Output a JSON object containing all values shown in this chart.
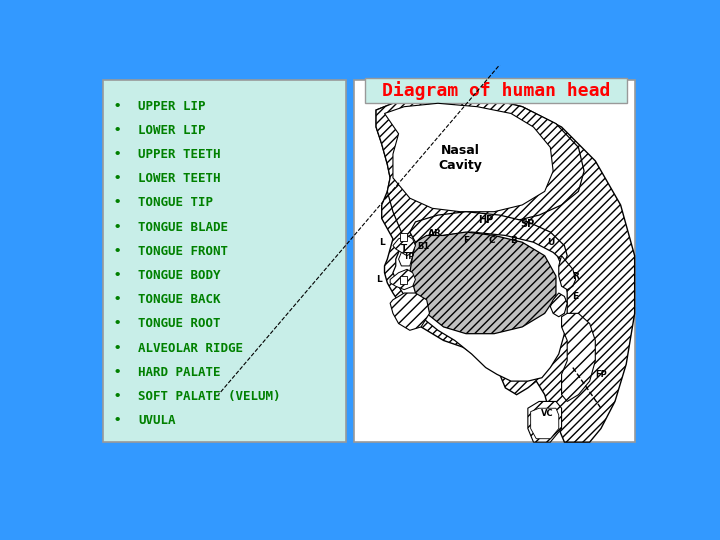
{
  "bg_color": "#3399FF",
  "left_box_color": "#C8EEE8",
  "left_box_edge_color": "#999999",
  "right_box_color": "#FFFFFF",
  "right_box_edge_color": "#999999",
  "title_text": "Diagram of human head",
  "title_color": "#FF0000",
  "title_bg": "#C8EEE8",
  "title_fontsize": 13,
  "list_items": [
    "UPPER LIP",
    "LOWER LIP",
    "UPPER TEETH",
    "LOWER TEETH",
    "TONGUE TIP",
    "TONGUE BLADE",
    "TONGUE FRONT",
    "TONGUE BODY",
    "TONGUE BACK",
    "TONGUE ROOT",
    "ALVEOLAR RIDGE",
    "HARD PALATE",
    "SOFT PALATE (VELUM)",
    "UVULA"
  ],
  "list_color": "#008000",
  "list_fontsize": 9.0,
  "bullet_fontsize": 9.0
}
